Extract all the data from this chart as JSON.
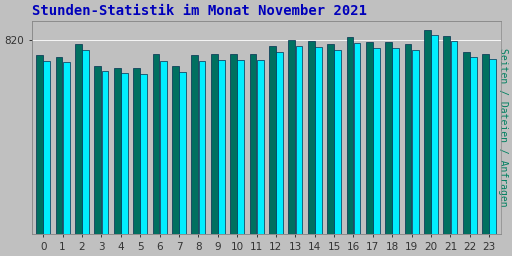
{
  "title": "Stunden-Statistik im Monat November 2021",
  "ylabel": "Seiten / Dateien / Anfragen",
  "hours": [
    0,
    1,
    2,
    3,
    4,
    5,
    6,
    7,
    8,
    9,
    10,
    11,
    12,
    13,
    14,
    15,
    16,
    17,
    18,
    19,
    20,
    21,
    22,
    23
  ],
  "series1_values": [
    755,
    745,
    800,
    710,
    700,
    700,
    760,
    710,
    755,
    760,
    760,
    760,
    795,
    820,
    815,
    800,
    830,
    810,
    810,
    800,
    860,
    835,
    770,
    758
  ],
  "series2_values": [
    730,
    725,
    775,
    690,
    680,
    675,
    730,
    685,
    730,
    735,
    735,
    735,
    768,
    795,
    790,
    775,
    805,
    785,
    785,
    775,
    838,
    815,
    748,
    738
  ],
  "series1_color": "#007060",
  "series2_color": "#00EEFF",
  "bar_edge_color": "#003050",
  "background_color": "#c0c0c0",
  "plot_bg_color": "#c0c0c0",
  "title_color": "#0000bb",
  "ylabel_color": "#008060",
  "tick_label_color": "#333333",
  "ylim_min": 0,
  "ylim_max": 900,
  "ytick_value": 820,
  "ytick_label": "820",
  "title_fontsize": 10,
  "axis_fontsize": 7.5,
  "ylabel_fontsize": 7
}
